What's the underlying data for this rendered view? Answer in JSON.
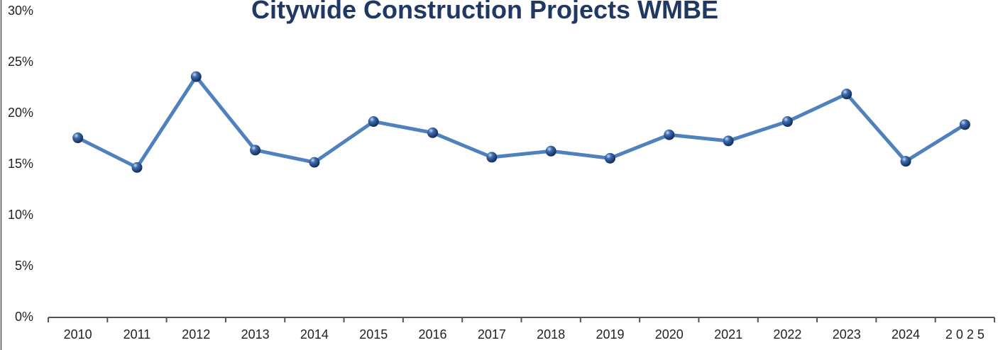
{
  "chart_data": {
    "type": "line",
    "title": "Citywide Construction Projects WMBE",
    "categories": [
      "2010",
      "2011",
      "2012",
      "2013",
      "2014",
      "2015",
      "2016",
      "2017",
      "2018",
      "2019",
      "2020",
      "2021",
      "2022",
      "2023",
      "2024",
      "2 0 2 5"
    ],
    "series": [
      {
        "name": "WMBE",
        "color": "#4f81bd",
        "values": [
          17.6,
          14.7,
          23.6,
          16.4,
          15.2,
          19.2,
          18.1,
          15.7,
          16.3,
          15.6,
          17.9,
          17.3,
          19.2,
          21.9,
          15.3,
          18.9
        ]
      }
    ],
    "ylim": [
      0,
      30
    ],
    "yticks": [
      {
        "value": 0,
        "label": "0%"
      },
      {
        "value": 5,
        "label": "5%"
      },
      {
        "value": 10,
        "label": "10%"
      },
      {
        "value": 15,
        "label": "15%"
      },
      {
        "value": 20,
        "label": "20%"
      },
      {
        "value": 25,
        "label": "25%"
      },
      {
        "value": 30,
        "label": "30%"
      }
    ],
    "grid": false
  }
}
